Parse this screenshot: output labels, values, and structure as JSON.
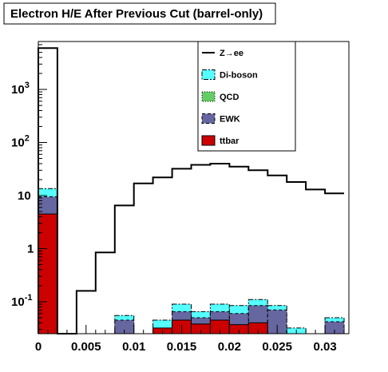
{
  "chart_data": {
    "type": "bar",
    "title": "Electron H/E After Previous Cut (barrel-only)",
    "xlabel": "",
    "ylabel": "",
    "xlim": [
      0,
      0.0325
    ],
    "ylim": [
      0.025,
      8000
    ],
    "log_y": true,
    "grid": false,
    "legend_placement": "top-right",
    "bin_edges": [
      0,
      0.002,
      0.004,
      0.006,
      0.008,
      0.01,
      0.012,
      0.014,
      0.016,
      0.018,
      0.02,
      0.022,
      0.024,
      0.026,
      0.028,
      0.03,
      0.032
    ],
    "x_ticks": [
      {
        "value": 0,
        "label": "0"
      },
      {
        "value": 0.005,
        "label": "0.005"
      },
      {
        "value": 0.01,
        "label": "0.01"
      },
      {
        "value": 0.015,
        "label": "0.015"
      },
      {
        "value": 0.02,
        "label": "0.02"
      },
      {
        "value": 0.025,
        "label": "0.025"
      },
      {
        "value": 0.03,
        "label": "0.03"
      }
    ],
    "y_ticks": [
      {
        "value": 0.1,
        "base": "10",
        "exp": "-1"
      },
      {
        "value": 1,
        "base": "1",
        "exp": ""
      },
      {
        "value": 10,
        "base": "10",
        "exp": ""
      },
      {
        "value": 100,
        "base": "10",
        "exp": "2"
      },
      {
        "value": 1000,
        "base": "10",
        "exp": "3"
      }
    ],
    "series": [
      {
        "name": "Z→ee",
        "kind": "line",
        "color": "#000000",
        "values": [
          6000,
          0,
          0.16,
          0.85,
          6.5,
          17,
          22,
          32,
          38,
          40,
          35,
          30,
          24,
          18,
          13,
          11
        ]
      },
      {
        "name": "Di-boson",
        "kind": "fill",
        "fill": "#55ffff",
        "stroke": "#000000",
        "dash": "6,2,2,2",
        "values": [
          13.5,
          0,
          0,
          0,
          0.055,
          0,
          0.045,
          0.09,
          0.065,
          0.09,
          0.085,
          0.11,
          0.085,
          0.032,
          0,
          0.05
        ]
      },
      {
        "name": "QCD",
        "kind": "fill",
        "fill": "#66cc66",
        "stroke": "#000000",
        "dash": "1,2",
        "values": [
          0,
          0,
          0,
          0,
          0,
          0,
          0,
          0,
          0,
          0,
          0,
          0,
          0,
          0,
          0,
          0
        ]
      },
      {
        "name": "EWK",
        "kind": "fill",
        "fill": "#6666a0",
        "stroke": "#000000",
        "dash": "4,3",
        "values": [
          9.5,
          0,
          0,
          0,
          0.045,
          0,
          0.03,
          0.065,
          0.05,
          0.065,
          0.06,
          0.085,
          0.07,
          0,
          0,
          0.042
        ]
      },
      {
        "name": "ttbar",
        "kind": "fill",
        "fill": "#cc0000",
        "stroke": "#000000",
        "dash": "",
        "values": [
          4.5,
          0,
          0,
          0,
          0,
          0,
          0.032,
          0.045,
          0.038,
          0.045,
          0.037,
          0.04,
          0,
          0,
          0,
          0
        ]
      }
    ]
  }
}
